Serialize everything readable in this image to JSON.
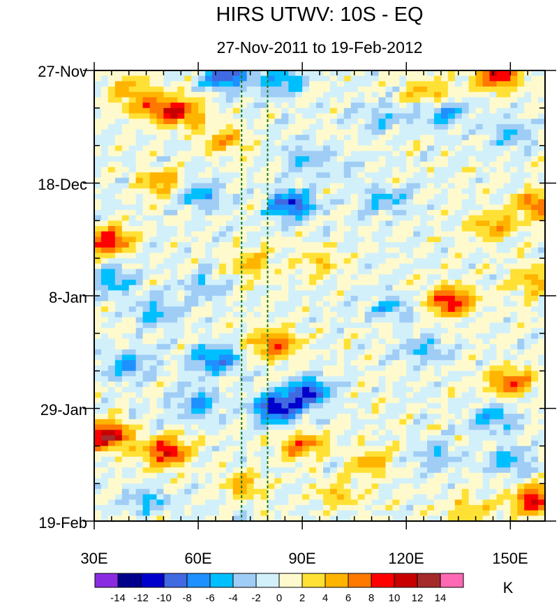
{
  "chart_data": {
    "type": "heatmap",
    "title": "HIRS UTWV: 10S - EQ",
    "subtitle": "27-Nov-2011 to 19-Feb-2012",
    "xlabel": "",
    "ylabel": "",
    "x_range": [
      30,
      160
    ],
    "x_ticks": [
      {
        "value": 30,
        "label": "30E"
      },
      {
        "value": 60,
        "label": "60E"
      },
      {
        "value": 90,
        "label": "90E"
      },
      {
        "value": 120,
        "label": "120E"
      },
      {
        "value": 150,
        "label": "150E"
      }
    ],
    "y_range_days": [
      0,
      84
    ],
    "y_ticks": [
      {
        "day": 0,
        "label": "27-Nov"
      },
      {
        "day": 21,
        "label": "18-Dec"
      },
      {
        "day": 42,
        "label": "8-Jan"
      },
      {
        "day": 63,
        "label": "29-Jan"
      },
      {
        "day": 84,
        "label": "19-Feb"
      }
    ],
    "reference_lines_lon": [
      72.5,
      80
    ],
    "reference_line_color": "#1a7a1a",
    "colorbar": {
      "unit": "K",
      "levels": [
        -14,
        -12,
        -10,
        -8,
        -6,
        -4,
        -2,
        0,
        2,
        4,
        6,
        8,
        10,
        12,
        14
      ],
      "level_labels": [
        "-14",
        "-12",
        "-10",
        "-8",
        "-6",
        "-4",
        "-2",
        "0",
        "2",
        "4",
        "6",
        "8",
        "10",
        "12",
        "14"
      ],
      "colors": [
        "#8a2be2",
        "#00008b",
        "#0000cd",
        "#4169e1",
        "#1e90ff",
        "#00bfff",
        "#a0cdf5",
        "#d2f0fa",
        "#fffacd",
        "#ffe135",
        "#ffb400",
        "#ff7800",
        "#ff0000",
        "#c80000",
        "#a52a2a",
        "#ff69b4"
      ]
    },
    "features": [
      {
        "lon": 68,
        "day": 1,
        "value": -10
      },
      {
        "lon": 84,
        "day": 2,
        "value": -6
      },
      {
        "lon": 146,
        "day": 1,
        "value": 10
      },
      {
        "lon": 127,
        "day": 4,
        "value": 5
      },
      {
        "lon": 40,
        "day": 4,
        "value": 5
      },
      {
        "lon": 55,
        "day": 8,
        "value": 8
      },
      {
        "lon": 48,
        "day": 7,
        "value": 6
      },
      {
        "lon": 68,
        "day": 13,
        "value": 5
      },
      {
        "lon": 113,
        "day": 9,
        "value": -4
      },
      {
        "lon": 131,
        "day": 8,
        "value": -6
      },
      {
        "lon": 150,
        "day": 12,
        "value": -4
      },
      {
        "lon": 90,
        "day": 16,
        "value": -4
      },
      {
        "lon": 101,
        "day": 18,
        "value": -2
      },
      {
        "lon": 50,
        "day": 21,
        "value": 6
      },
      {
        "lon": 60,
        "day": 23,
        "value": -6
      },
      {
        "lon": 87,
        "day": 25,
        "value": -10
      },
      {
        "lon": 114,
        "day": 24,
        "value": -5
      },
      {
        "lon": 158,
        "day": 25,
        "value": 8
      },
      {
        "lon": 34,
        "day": 32,
        "value": 10
      },
      {
        "lon": 145,
        "day": 29,
        "value": 6
      },
      {
        "lon": 75,
        "day": 36,
        "value": 5
      },
      {
        "lon": 95,
        "day": 36,
        "value": 4
      },
      {
        "lon": 35,
        "day": 39,
        "value": -6
      },
      {
        "lon": 62,
        "day": 40,
        "value": -4
      },
      {
        "lon": 133,
        "day": 43,
        "value": 10
      },
      {
        "lon": 157,
        "day": 39,
        "value": 5
      },
      {
        "lon": 48,
        "day": 45,
        "value": -5
      },
      {
        "lon": 115,
        "day": 44,
        "value": -4
      },
      {
        "lon": 82,
        "day": 51,
        "value": 8
      },
      {
        "lon": 65,
        "day": 54,
        "value": -8
      },
      {
        "lon": 40,
        "day": 55,
        "value": -6
      },
      {
        "lon": 125,
        "day": 52,
        "value": -4
      },
      {
        "lon": 92,
        "day": 60,
        "value": -10
      },
      {
        "lon": 83,
        "day": 63,
        "value": -12
      },
      {
        "lon": 150,
        "day": 58,
        "value": 8
      },
      {
        "lon": 145,
        "day": 65,
        "value": -5
      },
      {
        "lon": 60,
        "day": 62,
        "value": -6
      },
      {
        "lon": 34,
        "day": 68,
        "value": 12
      },
      {
        "lon": 51,
        "day": 71,
        "value": 10
      },
      {
        "lon": 90,
        "day": 70,
        "value": 7
      },
      {
        "lon": 110,
        "day": 73,
        "value": 5
      },
      {
        "lon": 128,
        "day": 72,
        "value": -4
      },
      {
        "lon": 150,
        "day": 73,
        "value": -5
      },
      {
        "lon": 73,
        "day": 77,
        "value": 5
      },
      {
        "lon": 100,
        "day": 79,
        "value": 4
      },
      {
        "lon": 157,
        "day": 80,
        "value": 10
      },
      {
        "lon": 45,
        "day": 80,
        "value": -4
      },
      {
        "lon": 138,
        "day": 82,
        "value": 4
      }
    ]
  }
}
